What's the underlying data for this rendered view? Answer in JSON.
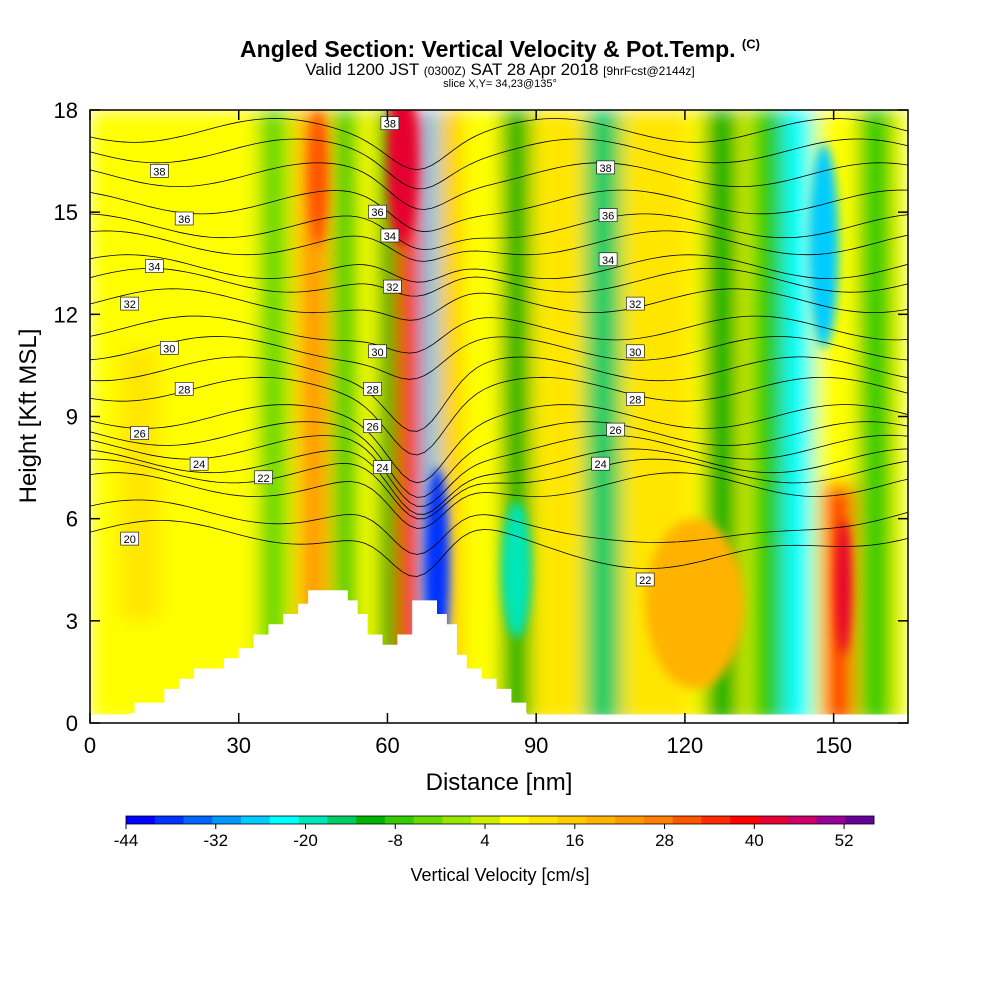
{
  "header": {
    "title": "Angled Section: Vertical Velocity & Pot.Temp.",
    "title_mark": "(C)",
    "subtitle_main": "Valid 1200 JST",
    "subtitle_small": "(0300Z)",
    "subtitle_date": "SAT 28 Apr 2018",
    "subtitle_fcst": "[9hrFcst@2144z]",
    "slice": "slice X,Y= 34,23@135°"
  },
  "chart_data": {
    "type": "heatmap",
    "title": "Angled Section: Vertical Velocity & Pot.Temp.",
    "xlabel": "Distance [nm]",
    "ylabel": "Height [Kft MSL]",
    "xlim": [
      0,
      165
    ],
    "ylim": [
      0,
      18
    ],
    "x_ticks": [
      0,
      30,
      60,
      90,
      120,
      150
    ],
    "y_ticks": [
      0,
      3,
      6,
      9,
      12,
      15,
      18
    ],
    "colorbar": {
      "title": "Vertical Velocity [cm/s]",
      "tick_labels": [
        "-44",
        "-32",
        "-20",
        "-8",
        "4",
        "16",
        "28",
        "40",
        "52"
      ],
      "tick_values": [
        -44,
        -32,
        -20,
        -8,
        4,
        16,
        28,
        40,
        52
      ],
      "colors": [
        "#0000ff",
        "#0033ff",
        "#0066ff",
        "#0099ff",
        "#00ccff",
        "#00ffff",
        "#00e6b8",
        "#00cc66",
        "#00b300",
        "#33cc00",
        "#66d900",
        "#99e600",
        "#ccf000",
        "#ffff00",
        "#ffe600",
        "#ffcc00",
        "#ffb300",
        "#ff9900",
        "#ff7f00",
        "#ff5500",
        "#ff2a00",
        "#ff0000",
        "#e60033",
        "#cc0066",
        "#990099",
        "#660099"
      ]
    },
    "velocity_bands": [
      {
        "x": 0,
        "w": 165,
        "value": 6
      },
      {
        "x": 6,
        "w": 8,
        "value": 10,
        "y0": 3,
        "y1": 11
      },
      {
        "x": 34,
        "w": 6,
        "value": -4
      },
      {
        "x": 42,
        "w": 6,
        "value": 22
      },
      {
        "x": 49,
        "w": 5,
        "value": -6
      },
      {
        "x": 58,
        "w": 4,
        "value": -10
      },
      {
        "x": 62,
        "w": 5,
        "value": 36
      },
      {
        "x": 67,
        "w": 3,
        "value": -26
      },
      {
        "x": 70,
        "w": 5,
        "value": 16
      },
      {
        "x": 76,
        "w": 6,
        "value": 8
      },
      {
        "x": 83,
        "w": 6,
        "value": -12
      },
      {
        "x": 90,
        "w": 10,
        "value": 10
      },
      {
        "x": 100,
        "w": 7,
        "value": -14
      },
      {
        "x": 107,
        "w": 14,
        "value": 12
      },
      {
        "x": 124,
        "w": 7,
        "value": -10
      },
      {
        "x": 133,
        "w": 7,
        "value": -8
      },
      {
        "x": 140,
        "w": 6,
        "value": -22
      },
      {
        "x": 148,
        "w": 6,
        "value": 34,
        "y0": 0,
        "y1": 7
      },
      {
        "x": 155,
        "w": 7,
        "value": -6
      }
    ],
    "strong_features": [
      {
        "x": 63,
        "y": 16.5,
        "rx": 3,
        "ry": 2.5,
        "value": 44
      },
      {
        "x": 70,
        "y": 4.5,
        "rx": 2.5,
        "ry": 3,
        "value": -40
      },
      {
        "x": 46,
        "y": 16,
        "rx": 2,
        "ry": 2,
        "value": 30
      },
      {
        "x": 152,
        "y": 4,
        "rx": 1.5,
        "ry": 2,
        "value": 44
      },
      {
        "x": 122,
        "y": 3.5,
        "rx": 10,
        "ry": 2.5,
        "value": 18
      },
      {
        "x": 86,
        "y": 4.5,
        "rx": 3,
        "ry": 2,
        "value": -18
      },
      {
        "x": 148,
        "y": 14,
        "rx": 3,
        "ry": 3,
        "value": -28
      }
    ],
    "terrain": [
      [
        0,
        0
      ],
      [
        9,
        0.3
      ],
      [
        9,
        0.6
      ],
      [
        15,
        0.6
      ],
      [
        15,
        1
      ],
      [
        18,
        1
      ],
      [
        18,
        1.3
      ],
      [
        21,
        1.3
      ],
      [
        21,
        1.6
      ],
      [
        27,
        1.6
      ],
      [
        27,
        1.9
      ],
      [
        30,
        1.9
      ],
      [
        30,
        2.2
      ],
      [
        33,
        2.2
      ],
      [
        33,
        2.6
      ],
      [
        36,
        2.6
      ],
      [
        36,
        2.9
      ],
      [
        39,
        2.9
      ],
      [
        39,
        3.2
      ],
      [
        42,
        3.2
      ],
      [
        42,
        3.5
      ],
      [
        44,
        3.5
      ],
      [
        44,
        3.9
      ],
      [
        52,
        3.9
      ],
      [
        52,
        3.6
      ],
      [
        54,
        3.6
      ],
      [
        54,
        3.2
      ],
      [
        56,
        3.2
      ],
      [
        56,
        2.6
      ],
      [
        59,
        2.6
      ],
      [
        59,
        2.3
      ],
      [
        62,
        2.3
      ],
      [
        62,
        2.6
      ],
      [
        65,
        2.6
      ],
      [
        65,
        3.6
      ],
      [
        70,
        3.6
      ],
      [
        70,
        3.2
      ],
      [
        72,
        3.2
      ],
      [
        72,
        2.9
      ],
      [
        74,
        2.9
      ],
      [
        74,
        2
      ],
      [
        76,
        2
      ],
      [
        76,
        1.6
      ],
      [
        79,
        1.6
      ],
      [
        79,
        1.3
      ],
      [
        82,
        1.3
      ],
      [
        82,
        1
      ],
      [
        85,
        1
      ],
      [
        85,
        0.6
      ],
      [
        88,
        0.6
      ],
      [
        88,
        0.3
      ],
      [
        90,
        0
      ],
      [
        165,
        0
      ]
    ],
    "theta_levels": [
      {
        "value": 20,
        "y": 5.6
      },
      {
        "value": 21,
        "y": 6.2
      },
      {
        "value": 22,
        "y": 7.0
      },
      {
        "value": 23,
        "y": 7.4
      },
      {
        "value": 24,
        "y": 7.7
      },
      {
        "value": 25,
        "y": 8.1
      },
      {
        "value": 26,
        "y": 8.5
      },
      {
        "value": 27,
        "y": 9.0
      },
      {
        "value": 28,
        "y": 9.8
      },
      {
        "value": 29,
        "y": 10.4
      },
      {
        "value": 30,
        "y": 11.0
      },
      {
        "value": 31,
        "y": 11.6
      },
      {
        "value": 32,
        "y": 12.4
      },
      {
        "value": 33,
        "y": 13.0
      },
      {
        "value": 34,
        "y": 13.4
      },
      {
        "value": 35,
        "y": 14.1
      },
      {
        "value": 36,
        "y": 14.6
      },
      {
        "value": 37,
        "y": 15.3
      },
      {
        "value": 38,
        "y": 16.1
      },
      {
        "value": 39,
        "y": 16.8
      },
      {
        "value": 40,
        "y": 17.4
      }
    ],
    "contour_labels": [
      {
        "text": "38",
        "x": 14,
        "y": 16.2
      },
      {
        "text": "36",
        "x": 19,
        "y": 14.8
      },
      {
        "text": "34",
        "x": 13,
        "y": 13.4
      },
      {
        "text": "32",
        "x": 8,
        "y": 12.3
      },
      {
        "text": "30",
        "x": 16,
        "y": 11.0
      },
      {
        "text": "28",
        "x": 19,
        "y": 9.8
      },
      {
        "text": "26",
        "x": 10,
        "y": 8.5
      },
      {
        "text": "24",
        "x": 22,
        "y": 7.6
      },
      {
        "text": "22",
        "x": 35,
        "y": 7.2
      },
      {
        "text": "20",
        "x": 8,
        "y": 5.4
      },
      {
        "text": "38",
        "x": 60.5,
        "y": 17.6
      },
      {
        "text": "36",
        "x": 58,
        "y": 15.0
      },
      {
        "text": "34",
        "x": 60.5,
        "y": 14.3
      },
      {
        "text": "32",
        "x": 61,
        "y": 12.8
      },
      {
        "text": "30",
        "x": 58,
        "y": 10.9
      },
      {
        "text": "28",
        "x": 57,
        "y": 9.8
      },
      {
        "text": "26",
        "x": 57,
        "y": 8.7
      },
      {
        "text": "24",
        "x": 59,
        "y": 7.5
      },
      {
        "text": "38",
        "x": 104,
        "y": 16.3
      },
      {
        "text": "36",
        "x": 104.5,
        "y": 14.9
      },
      {
        "text": "34",
        "x": 104.5,
        "y": 13.6
      },
      {
        "text": "32",
        "x": 110,
        "y": 12.3
      },
      {
        "text": "30",
        "x": 110,
        "y": 10.9
      },
      {
        "text": "28",
        "x": 110,
        "y": 9.5
      },
      {
        "text": "26",
        "x": 106,
        "y": 8.6
      },
      {
        "text": "24",
        "x": 103,
        "y": 7.6
      },
      {
        "text": "22",
        "x": 112,
        "y": 4.2
      }
    ]
  }
}
